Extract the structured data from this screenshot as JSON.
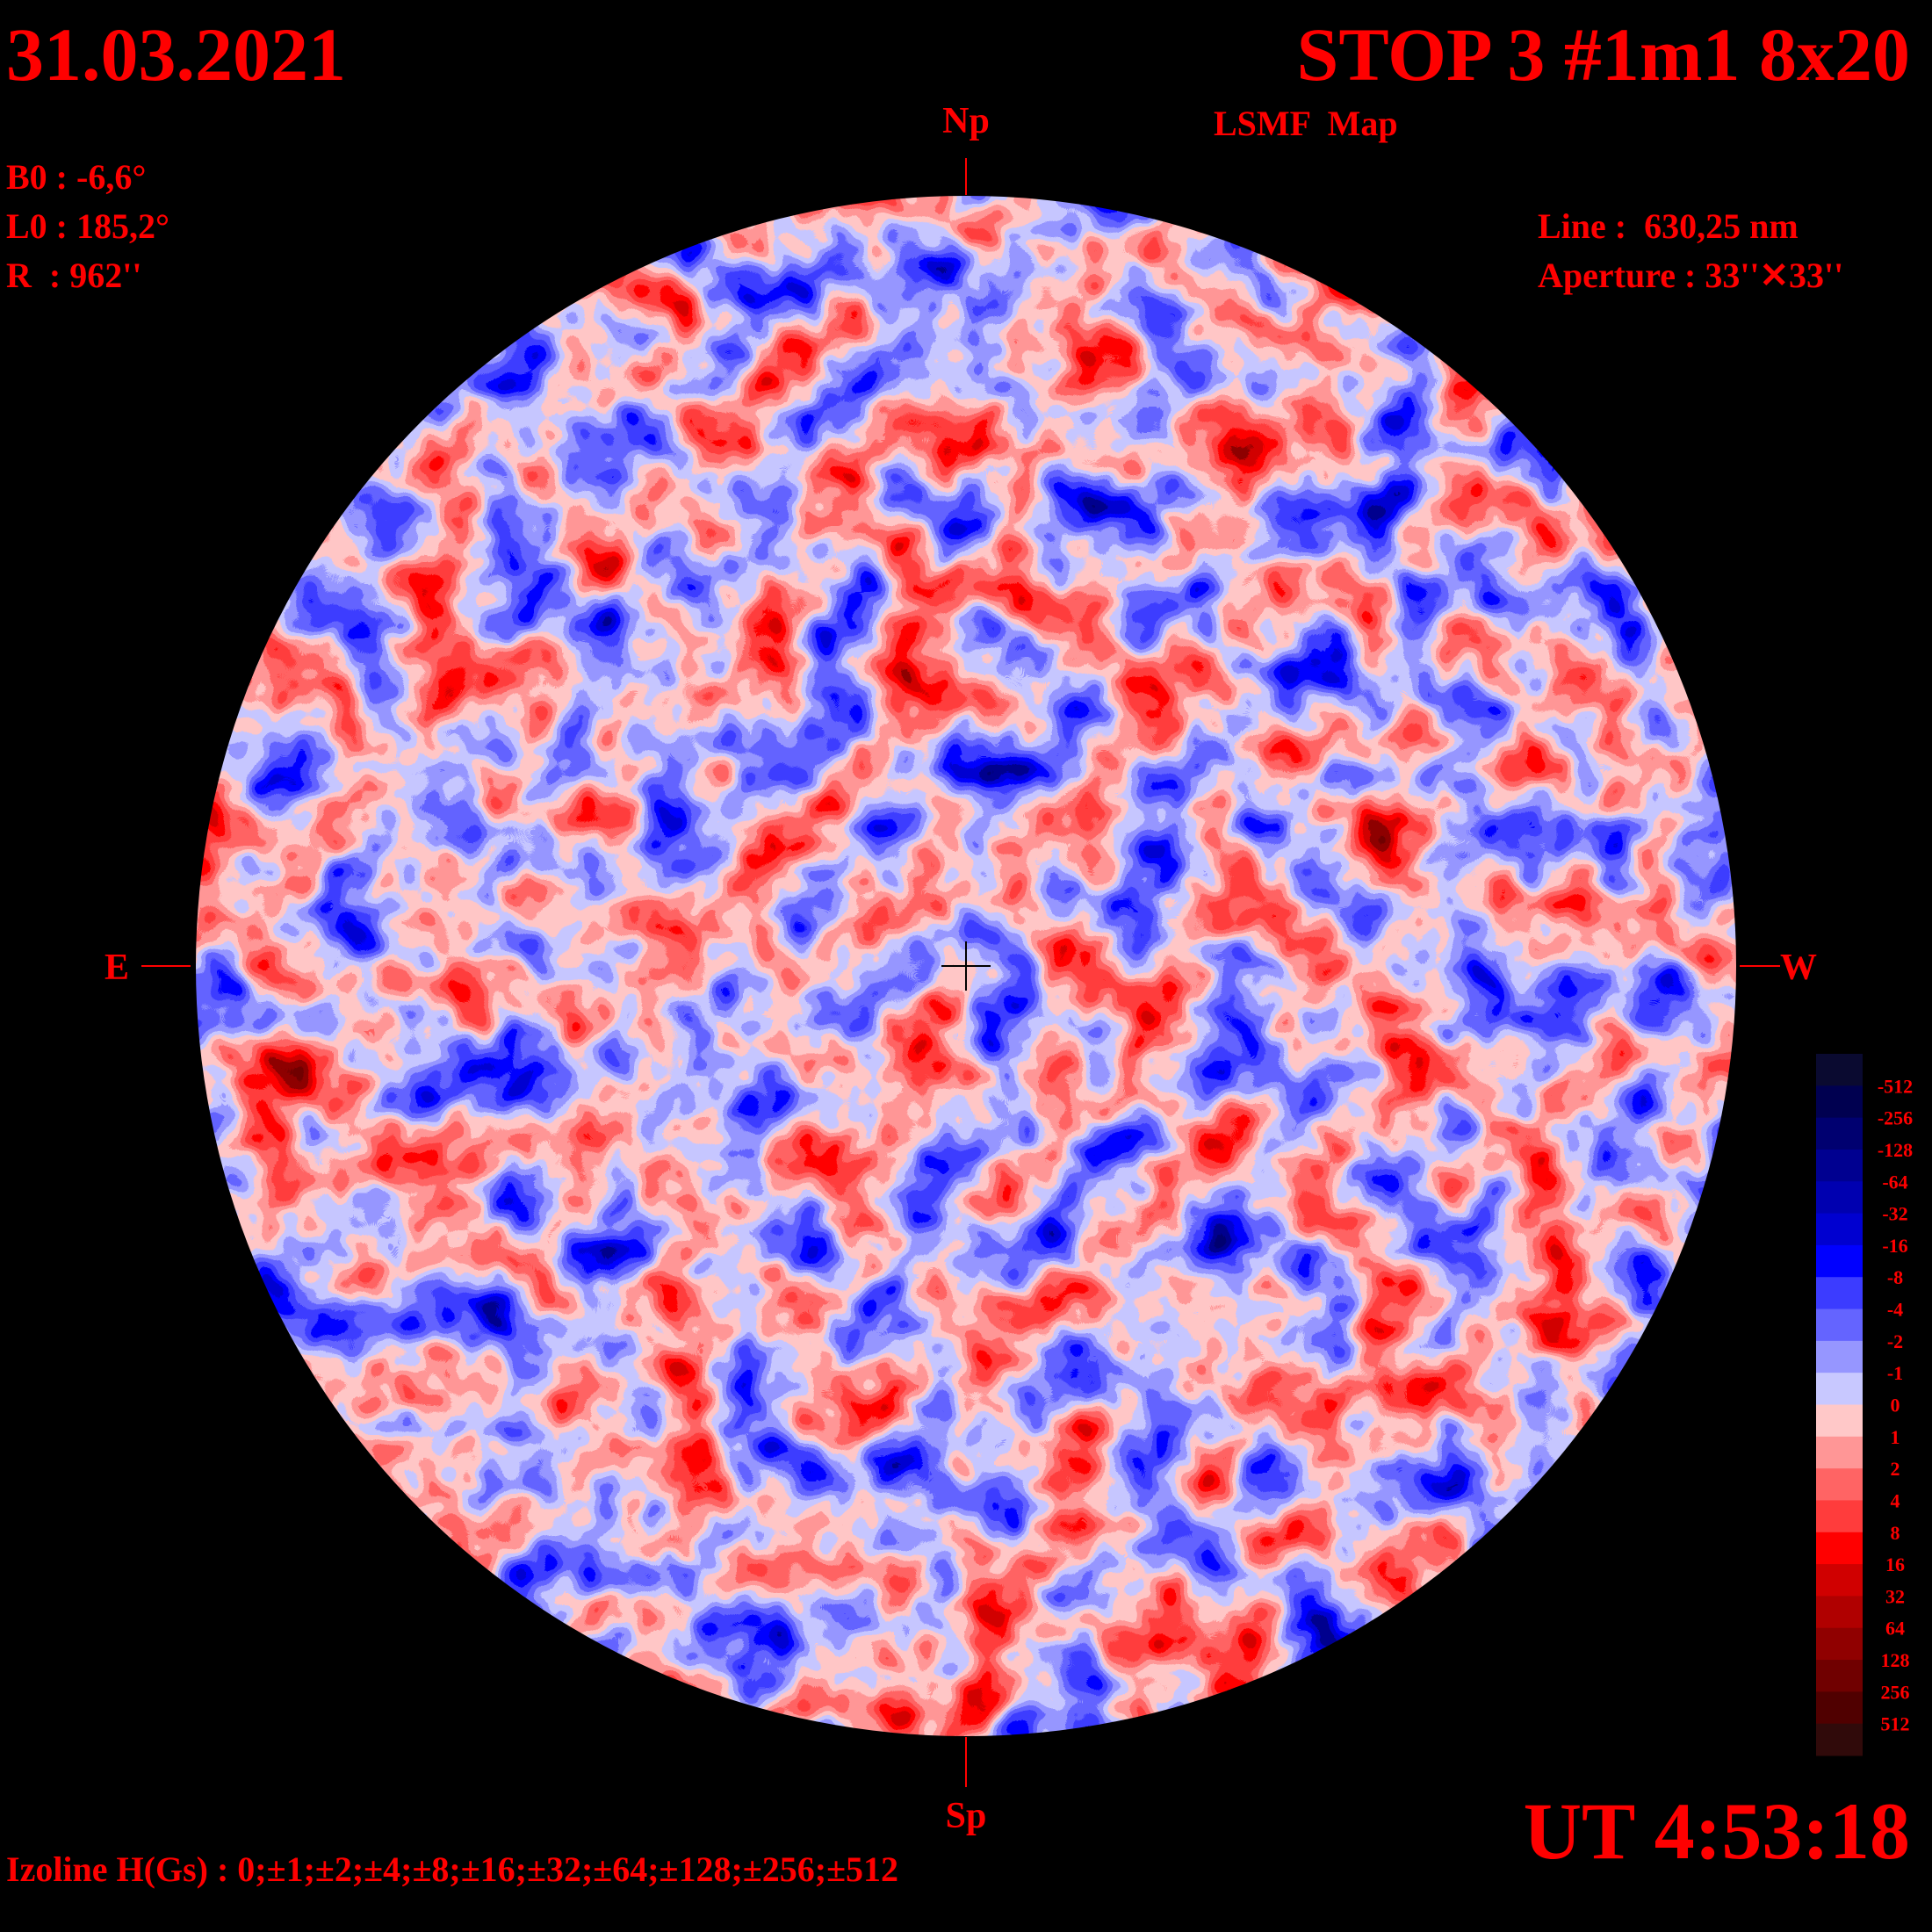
{
  "header": {
    "date": "31.03.2021",
    "title": "STOP 3 #1m1 8x20",
    "subtitle": "LSMF  Map",
    "ut": "UT 4:53:18"
  },
  "params": {
    "b0": "B0 : -6,6°",
    "l0": "L0 : 185,2°",
    "r": "R  : 962''"
  },
  "instrument": {
    "line": "Line :  630,25 nm",
    "aperture": "Aperture : 33''✕33''"
  },
  "directions": {
    "north": "Np",
    "south": "Sp",
    "east": "E",
    "west": "W"
  },
  "footer": "Izoline H(Gs) : 0;±1;±2;±4;±8;±16;±32;±64;±128;±256;±512",
  "colorbar": {
    "labels": [
      -512,
      -256,
      -128,
      -64,
      -32,
      -16,
      -8,
      -4,
      -2,
      -1,
      0,
      1,
      2,
      4,
      8,
      16,
      32,
      64,
      128,
      256,
      512
    ],
    "colors": [
      "#0a0a30",
      "#000050",
      "#000070",
      "#000090",
      "#0000b0",
      "#0000d0",
      "#0000ff",
      "#3c3cff",
      "#6464ff",
      "#9696ff",
      "#c8c8ff",
      "#ffc8c8",
      "#ff9696",
      "#ff6464",
      "#ff3c3c",
      "#ff0000",
      "#d00000",
      "#b00000",
      "#900000",
      "#700000",
      "#500000",
      "#300a0a"
    ]
  }
}
